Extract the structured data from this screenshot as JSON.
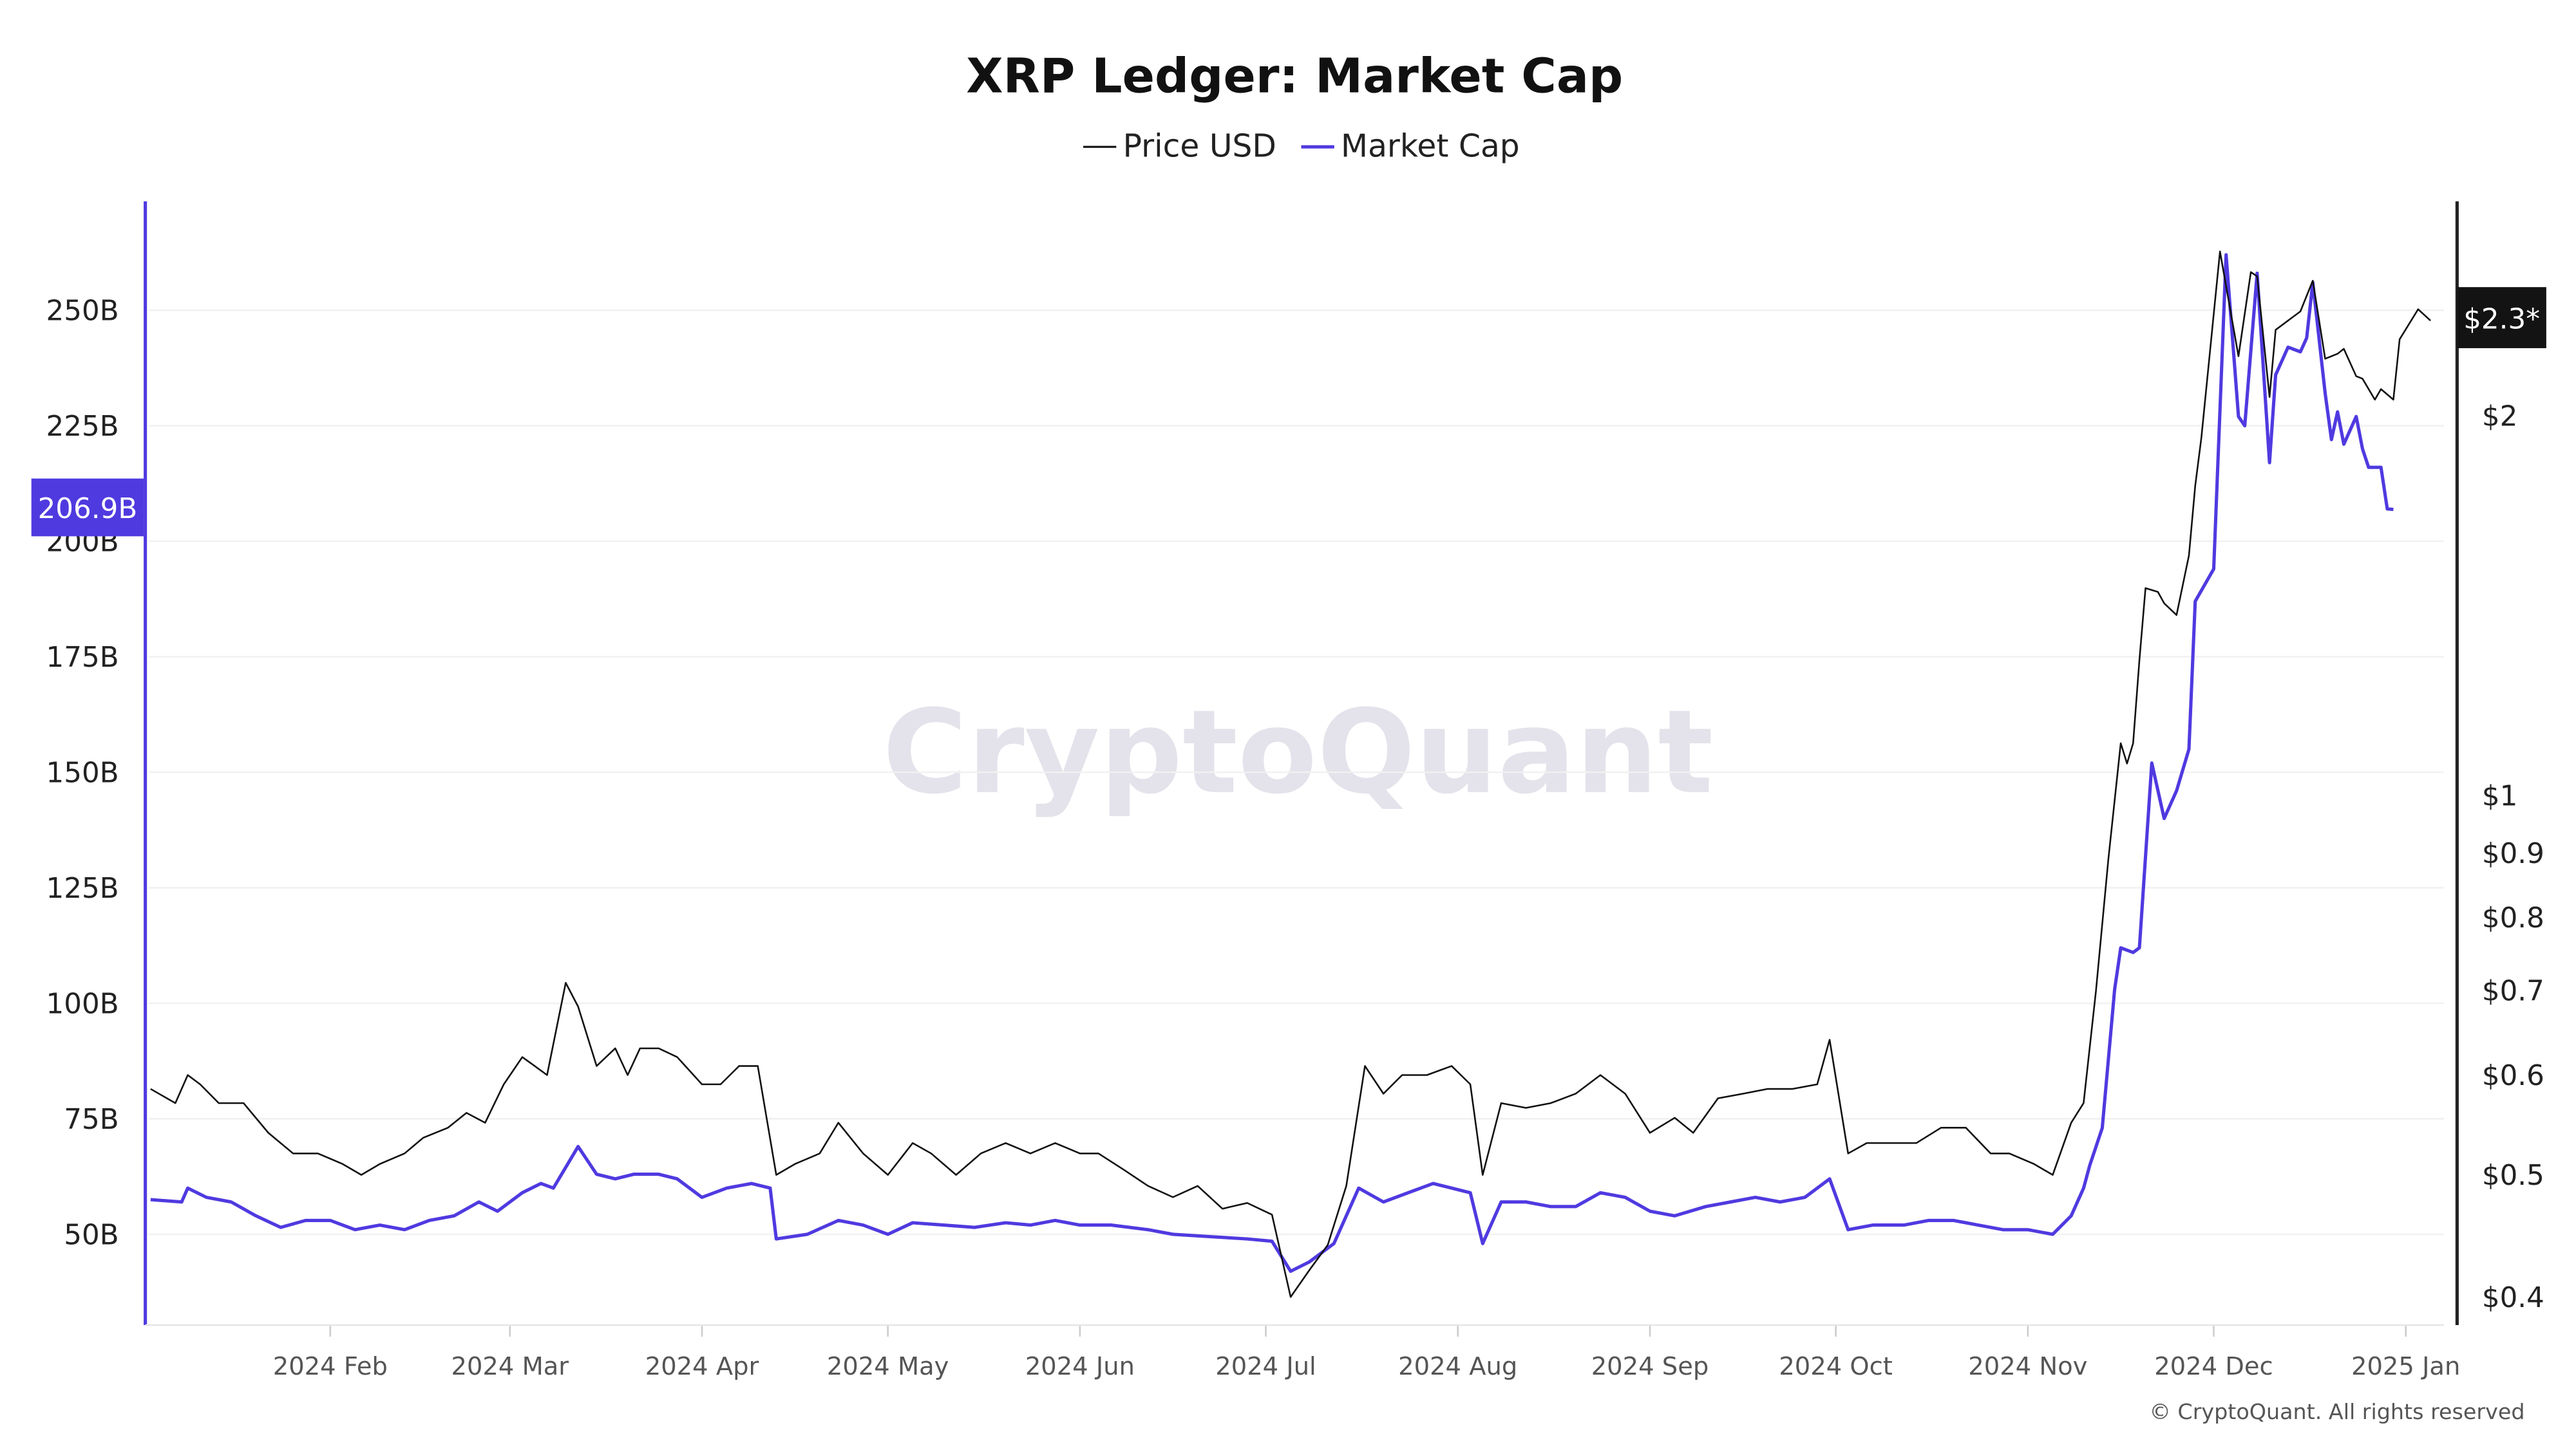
{
  "chart_data": {
    "type": "line",
    "title": "XRP Ledger: Market Cap",
    "legend_position": "top-center",
    "grid": true,
    "colors": {
      "price": "#111111",
      "market_cap": "#4f3ae0"
    },
    "watermark": "CryptoQuant",
    "copyright": "© CryptoQuant. All rights reserved",
    "x_ticks": [
      "2024 Feb",
      "2024 Mar",
      "2024 Apr",
      "2024 May",
      "2024 Jun",
      "2024 Jul",
      "2024 Aug",
      "2024 Sep",
      "2024 Oct",
      "2024 Nov",
      "2024 Dec",
      "2025 Jan"
    ],
    "x_tick_dates": [
      "2024-02-01",
      "2024-03-01",
      "2024-04-01",
      "2024-05-01",
      "2024-06-01",
      "2024-07-01",
      "2024-08-01",
      "2024-09-01",
      "2024-10-01",
      "2024-11-01",
      "2024-12-01",
      "2025-01-01"
    ],
    "left_axis": {
      "scale": "linear",
      "range": [
        30,
        273
      ],
      "ticks": [
        50,
        75,
        100,
        125,
        150,
        175,
        200,
        225,
        250
      ],
      "tick_labels": [
        "50B",
        "75B",
        "100B",
        "125B",
        "150B",
        "175B",
        "200B",
        "225B",
        "250B"
      ],
      "current_value_label": "206.9B"
    },
    "right_axis": {
      "scale": "log",
      "range": [
        0.385,
        3.1
      ],
      "ticks": [
        0.4,
        0.5,
        0.6,
        0.7,
        0.8,
        0.9,
        1,
        2
      ],
      "tick_labels": [
        "$0.4",
        "$0.5",
        "$0.6",
        "$0.7",
        "$0.8",
        "$0.9",
        "$1",
        "$2"
      ],
      "current_value_label": "$2.3*"
    },
    "series": [
      {
        "name": "Price USD",
        "axis": "right",
        "points": [
          [
            "2024-01-03",
            0.585
          ],
          [
            "2024-01-07",
            0.57
          ],
          [
            "2024-01-09",
            0.6
          ],
          [
            "2024-01-11",
            0.59
          ],
          [
            "2024-01-14",
            0.57
          ],
          [
            "2024-01-18",
            0.57
          ],
          [
            "2024-01-22",
            0.54
          ],
          [
            "2024-01-26",
            0.52
          ],
          [
            "2024-01-30",
            0.52
          ],
          [
            "2024-02-03",
            0.51
          ],
          [
            "2024-02-06",
            0.5
          ],
          [
            "2024-02-09",
            0.51
          ],
          [
            "2024-02-13",
            0.52
          ],
          [
            "2024-02-16",
            0.535
          ],
          [
            "2024-02-20",
            0.545
          ],
          [
            "2024-02-23",
            0.56
          ],
          [
            "2024-02-26",
            0.55
          ],
          [
            "2024-02-29",
            0.59
          ],
          [
            "2024-03-03",
            0.62
          ],
          [
            "2024-03-05",
            0.61
          ],
          [
            "2024-03-07",
            0.6
          ],
          [
            "2024-03-10",
            0.71
          ],
          [
            "2024-03-12",
            0.68
          ],
          [
            "2024-03-15",
            0.61
          ],
          [
            "2024-03-18",
            0.63
          ],
          [
            "2024-03-20",
            0.6
          ],
          [
            "2024-03-22",
            0.63
          ],
          [
            "2024-03-25",
            0.63
          ],
          [
            "2024-03-28",
            0.62
          ],
          [
            "2024-04-01",
            0.59
          ],
          [
            "2024-04-04",
            0.59
          ],
          [
            "2024-04-07",
            0.61
          ],
          [
            "2024-04-10",
            0.61
          ],
          [
            "2024-04-13",
            0.5
          ],
          [
            "2024-04-16",
            0.51
          ],
          [
            "2024-04-20",
            0.52
          ],
          [
            "2024-04-23",
            0.55
          ],
          [
            "2024-04-27",
            0.52
          ],
          [
            "2024-05-01",
            0.5
          ],
          [
            "2024-05-05",
            0.53
          ],
          [
            "2024-05-08",
            0.52
          ],
          [
            "2024-05-12",
            0.5
          ],
          [
            "2024-05-16",
            0.52
          ],
          [
            "2024-05-20",
            0.53
          ],
          [
            "2024-05-24",
            0.52
          ],
          [
            "2024-05-28",
            0.53
          ],
          [
            "2024-06-01",
            0.52
          ],
          [
            "2024-06-04",
            0.52
          ],
          [
            "2024-06-08",
            0.505
          ],
          [
            "2024-06-12",
            0.49
          ],
          [
            "2024-06-16",
            0.48
          ],
          [
            "2024-06-20",
            0.49
          ],
          [
            "2024-06-24",
            0.47
          ],
          [
            "2024-06-28",
            0.475
          ],
          [
            "2024-07-02",
            0.465
          ],
          [
            "2024-07-05",
            0.4
          ],
          [
            "2024-07-08",
            0.42
          ],
          [
            "2024-07-11",
            0.44
          ],
          [
            "2024-07-14",
            0.49
          ],
          [
            "2024-07-17",
            0.61
          ],
          [
            "2024-07-20",
            0.58
          ],
          [
            "2024-07-23",
            0.6
          ],
          [
            "2024-07-27",
            0.6
          ],
          [
            "2024-07-31",
            0.61
          ],
          [
            "2024-08-03",
            0.59
          ],
          [
            "2024-08-05",
            0.5
          ],
          [
            "2024-08-08",
            0.57
          ],
          [
            "2024-08-12",
            0.565
          ],
          [
            "2024-08-16",
            0.57
          ],
          [
            "2024-08-20",
            0.58
          ],
          [
            "2024-08-24",
            0.6
          ],
          [
            "2024-08-28",
            0.58
          ],
          [
            "2024-09-01",
            0.54
          ],
          [
            "2024-09-05",
            0.555
          ],
          [
            "2024-09-08",
            0.54
          ],
          [
            "2024-09-12",
            0.575
          ],
          [
            "2024-09-16",
            0.58
          ],
          [
            "2024-09-20",
            0.585
          ],
          [
            "2024-09-24",
            0.585
          ],
          [
            "2024-09-28",
            0.59
          ],
          [
            "2024-09-30",
            0.64
          ],
          [
            "2024-10-03",
            0.52
          ],
          [
            "2024-10-06",
            0.53
          ],
          [
            "2024-10-10",
            0.53
          ],
          [
            "2024-10-14",
            0.53
          ],
          [
            "2024-10-18",
            0.545
          ],
          [
            "2024-10-22",
            0.545
          ],
          [
            "2024-10-26",
            0.52
          ],
          [
            "2024-10-29",
            0.52
          ],
          [
            "2024-11-02",
            0.51
          ],
          [
            "2024-11-05",
            0.5
          ],
          [
            "2024-11-08",
            0.55
          ],
          [
            "2024-11-10",
            0.57
          ],
          [
            "2024-11-12",
            0.7
          ],
          [
            "2024-11-14",
            0.89
          ],
          [
            "2024-11-16",
            1.1
          ],
          [
            "2024-11-17",
            1.06
          ],
          [
            "2024-11-18",
            1.1
          ],
          [
            "2024-11-19",
            1.28
          ],
          [
            "2024-11-20",
            1.46
          ],
          [
            "2024-11-22",
            1.45
          ],
          [
            "2024-11-23",
            1.42
          ],
          [
            "2024-11-25",
            1.39
          ],
          [
            "2024-11-27",
            1.55
          ],
          [
            "2024-11-28",
            1.76
          ],
          [
            "2024-11-29",
            1.92
          ],
          [
            "2024-12-02",
            2.7
          ],
          [
            "2024-12-05",
            2.23
          ],
          [
            "2024-12-07",
            2.6
          ],
          [
            "2024-12-08",
            2.58
          ],
          [
            "2024-12-10",
            2.07
          ],
          [
            "2024-12-11",
            2.34
          ],
          [
            "2024-12-13",
            2.38
          ],
          [
            "2024-12-15",
            2.42
          ],
          [
            "2024-12-17",
            2.56
          ],
          [
            "2024-12-19",
            2.22
          ],
          [
            "2024-12-21",
            2.24
          ],
          [
            "2024-12-22",
            2.26
          ],
          [
            "2024-12-24",
            2.15
          ],
          [
            "2024-12-25",
            2.14
          ],
          [
            "2024-12-27",
            2.06
          ],
          [
            "2024-12-28",
            2.1
          ],
          [
            "2024-12-30",
            2.06
          ],
          [
            "2024-12-31",
            2.3
          ],
          [
            "2025-01-03",
            2.43
          ],
          [
            "2025-01-05",
            2.38
          ]
        ]
      },
      {
        "name": "Market Cap",
        "axis": "left",
        "points": [
          [
            "2024-01-03",
            57.5
          ],
          [
            "2024-01-08",
            57
          ],
          [
            "2024-01-09",
            60
          ],
          [
            "2024-01-12",
            58
          ],
          [
            "2024-01-16",
            57
          ],
          [
            "2024-01-20",
            54
          ],
          [
            "2024-01-24",
            51.5
          ],
          [
            "2024-01-28",
            53
          ],
          [
            "2024-02-01",
            53
          ],
          [
            "2024-02-05",
            51
          ],
          [
            "2024-02-09",
            52
          ],
          [
            "2024-02-13",
            51
          ],
          [
            "2024-02-17",
            53
          ],
          [
            "2024-02-21",
            54
          ],
          [
            "2024-02-25",
            57
          ],
          [
            "2024-02-28",
            55
          ],
          [
            "2024-03-03",
            59
          ],
          [
            "2024-03-06",
            61
          ],
          [
            "2024-03-08",
            60
          ],
          [
            "2024-03-12",
            69
          ],
          [
            "2024-03-15",
            63
          ],
          [
            "2024-03-18",
            62
          ],
          [
            "2024-03-21",
            63
          ],
          [
            "2024-03-25",
            63
          ],
          [
            "2024-03-28",
            62
          ],
          [
            "2024-04-01",
            58
          ],
          [
            "2024-04-05",
            60
          ],
          [
            "2024-04-09",
            61
          ],
          [
            "2024-04-12",
            60
          ],
          [
            "2024-04-13",
            49
          ],
          [
            "2024-04-18",
            50
          ],
          [
            "2024-04-23",
            53
          ],
          [
            "2024-04-27",
            52
          ],
          [
            "2024-05-01",
            50
          ],
          [
            "2024-05-05",
            52.5
          ],
          [
            "2024-05-10",
            52
          ],
          [
            "2024-05-15",
            51.5
          ],
          [
            "2024-05-20",
            52.5
          ],
          [
            "2024-05-24",
            52
          ],
          [
            "2024-05-28",
            53
          ],
          [
            "2024-06-01",
            52
          ],
          [
            "2024-06-06",
            52
          ],
          [
            "2024-06-12",
            51
          ],
          [
            "2024-06-16",
            50
          ],
          [
            "2024-06-22",
            49.5
          ],
          [
            "2024-06-28",
            49
          ],
          [
            "2024-07-02",
            48.5
          ],
          [
            "2024-07-05",
            42
          ],
          [
            "2024-07-08",
            44
          ],
          [
            "2024-07-12",
            48
          ],
          [
            "2024-07-16",
            60
          ],
          [
            "2024-07-20",
            57
          ],
          [
            "2024-07-24",
            59
          ],
          [
            "2024-07-28",
            61
          ],
          [
            "2024-07-31",
            60
          ],
          [
            "2024-08-03",
            59
          ],
          [
            "2024-08-05",
            48
          ],
          [
            "2024-08-08",
            57
          ],
          [
            "2024-08-12",
            57
          ],
          [
            "2024-08-16",
            56
          ],
          [
            "2024-08-20",
            56
          ],
          [
            "2024-08-24",
            59
          ],
          [
            "2024-08-28",
            58
          ],
          [
            "2024-09-01",
            55
          ],
          [
            "2024-09-05",
            54
          ],
          [
            "2024-09-10",
            56
          ],
          [
            "2024-09-14",
            57
          ],
          [
            "2024-09-18",
            58
          ],
          [
            "2024-09-22",
            57
          ],
          [
            "2024-09-26",
            58
          ],
          [
            "2024-09-30",
            62
          ],
          [
            "2024-10-03",
            51
          ],
          [
            "2024-10-07",
            52
          ],
          [
            "2024-10-12",
            52
          ],
          [
            "2024-10-16",
            53
          ],
          [
            "2024-10-20",
            53
          ],
          [
            "2024-10-24",
            52
          ],
          [
            "2024-10-28",
            51
          ],
          [
            "2024-11-01",
            51
          ],
          [
            "2024-11-05",
            50
          ],
          [
            "2024-11-08",
            54
          ],
          [
            "2024-11-10",
            60
          ],
          [
            "2024-11-11",
            65
          ],
          [
            "2024-11-13",
            73
          ],
          [
            "2024-11-15",
            103
          ],
          [
            "2024-11-16",
            112
          ],
          [
            "2024-11-18",
            111
          ],
          [
            "2024-11-19",
            112
          ],
          [
            "2024-11-21",
            152
          ],
          [
            "2024-11-23",
            140
          ],
          [
            "2024-11-25",
            146
          ],
          [
            "2024-11-27",
            155
          ],
          [
            "2024-11-28",
            187
          ],
          [
            "2024-12-01",
            194
          ],
          [
            "2024-12-03",
            262
          ],
          [
            "2024-12-05",
            227
          ],
          [
            "2024-12-06",
            225
          ],
          [
            "2024-12-08",
            258
          ],
          [
            "2024-12-10",
            217
          ],
          [
            "2024-12-11",
            236
          ],
          [
            "2024-12-13",
            242
          ],
          [
            "2024-12-15",
            241
          ],
          [
            "2024-12-16",
            244
          ],
          [
            "2024-12-17",
            256
          ],
          [
            "2024-12-19",
            232
          ],
          [
            "2024-12-20",
            222
          ],
          [
            "2024-12-21",
            228
          ],
          [
            "2024-12-22",
            221
          ],
          [
            "2024-12-24",
            227
          ],
          [
            "2024-12-25",
            220
          ],
          [
            "2024-12-26",
            216
          ],
          [
            "2024-12-28",
            216
          ],
          [
            "2024-12-29",
            207
          ],
          [
            "2024-12-30",
            206.9
          ]
        ]
      }
    ]
  }
}
